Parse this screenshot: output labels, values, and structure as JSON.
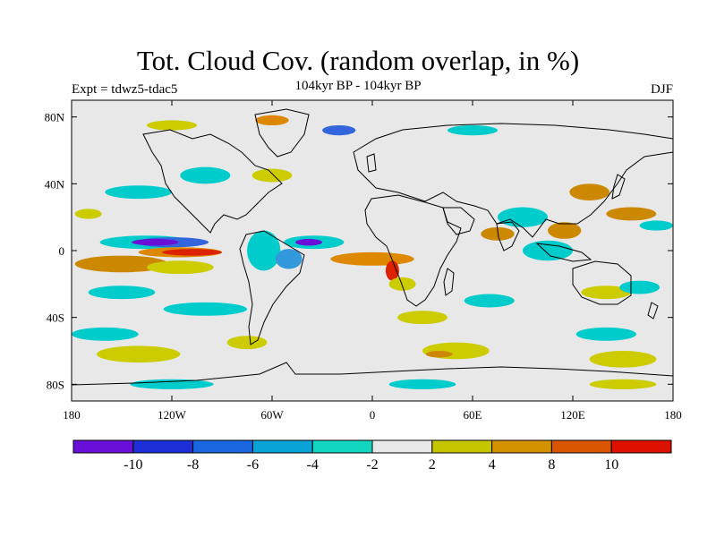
{
  "title": "Tot. Cloud Cov. (random overlap, in %)",
  "subtitle": "104kyr BP - 104kyr BP",
  "experiment_label": "Expt = tdwz5-tdac5",
  "season_label": "DJF",
  "map": {
    "lon_range": [
      -180,
      180
    ],
    "lat_range": [
      -90,
      90
    ],
    "background_color": "#e8e8e8",
    "coastline_color": "#000000",
    "x_tick_labels": [
      {
        "lon": -180,
        "label": "180"
      },
      {
        "lon": -120,
        "label": "120W"
      },
      {
        "lon": -60,
        "label": "60W"
      },
      {
        "lon": 0,
        "label": "0"
      },
      {
        "lon": 60,
        "label": "60E"
      },
      {
        "lon": 120,
        "label": "120E"
      },
      {
        "lon": 180,
        "label": "180"
      }
    ],
    "y_tick_labels": [
      {
        "lat": 80,
        "label": "80N"
      },
      {
        "lat": 40,
        "label": "40N"
      },
      {
        "lat": 0,
        "label": "0"
      },
      {
        "lat": -40,
        "label": "40S"
      },
      {
        "lat": -80,
        "label": "80S"
      }
    ],
    "anomaly_regions": [
      {
        "lon": -135,
        "lat": 5,
        "rx": 28,
        "ry": 4,
        "color": "#00cccc"
      },
      {
        "lon": -120,
        "lat": 5,
        "rx": 22,
        "ry": 3,
        "color": "#3366dd"
      },
      {
        "lon": -130,
        "lat": 5,
        "rx": 14,
        "ry": 2,
        "color": "#6a0fd8"
      },
      {
        "lon": -115,
        "lat": -1,
        "rx": 25,
        "ry": 3,
        "color": "#dd8800"
      },
      {
        "lon": -108,
        "lat": -1,
        "rx": 18,
        "ry": 2,
        "color": "#dd2200"
      },
      {
        "lon": -150,
        "lat": -8,
        "rx": 28,
        "ry": 5,
        "color": "#cc8800"
      },
      {
        "lon": -115,
        "lat": -10,
        "rx": 20,
        "ry": 4,
        "color": "#cccc00"
      },
      {
        "lon": -35,
        "lat": 5,
        "rx": 18,
        "ry": 4,
        "color": "#00cccc"
      },
      {
        "lon": -38,
        "lat": 5,
        "rx": 8,
        "ry": 2,
        "color": "#6a0fd8"
      },
      {
        "lon": -65,
        "lat": 0,
        "rx": 10,
        "ry": 12,
        "color": "#00cccc"
      },
      {
        "lon": -50,
        "lat": -5,
        "rx": 8,
        "ry": 6,
        "color": "#3399dd"
      },
      {
        "lon": 0,
        "lat": -5,
        "rx": 25,
        "ry": 4,
        "color": "#dd8800"
      },
      {
        "lon": 12,
        "lat": -12,
        "rx": 4,
        "ry": 6,
        "color": "#dd2200"
      },
      {
        "lon": 18,
        "lat": -20,
        "rx": 8,
        "ry": 4,
        "color": "#cccc00"
      },
      {
        "lon": -170,
        "lat": 22,
        "rx": 8,
        "ry": 3,
        "color": "#cccc00"
      },
      {
        "lon": -140,
        "lat": 35,
        "rx": 20,
        "ry": 4,
        "color": "#00cccc"
      },
      {
        "lon": -100,
        "lat": 45,
        "rx": 15,
        "ry": 5,
        "color": "#00cccc"
      },
      {
        "lon": -60,
        "lat": 45,
        "rx": 12,
        "ry": 4,
        "color": "#cccc00"
      },
      {
        "lon": -120,
        "lat": 75,
        "rx": 15,
        "ry": 3,
        "color": "#cccc00"
      },
      {
        "lon": -60,
        "lat": 78,
        "rx": 10,
        "ry": 3,
        "color": "#dd8800"
      },
      {
        "lon": -20,
        "lat": 72,
        "rx": 10,
        "ry": 3,
        "color": "#3366dd"
      },
      {
        "lon": 60,
        "lat": 72,
        "rx": 15,
        "ry": 3,
        "color": "#00cccc"
      },
      {
        "lon": 90,
        "lat": 20,
        "rx": 15,
        "ry": 6,
        "color": "#00cccc"
      },
      {
        "lon": 75,
        "lat": 10,
        "rx": 10,
        "ry": 4,
        "color": "#cc8800"
      },
      {
        "lon": 115,
        "lat": 12,
        "rx": 10,
        "ry": 5,
        "color": "#cc8800"
      },
      {
        "lon": 105,
        "lat": 0,
        "rx": 15,
        "ry": 6,
        "color": "#00cccc"
      },
      {
        "lon": 130,
        "lat": 35,
        "rx": 12,
        "ry": 5,
        "color": "#cc8800"
      },
      {
        "lon": 155,
        "lat": 22,
        "rx": 15,
        "ry": 4,
        "color": "#cc8800"
      },
      {
        "lon": 170,
        "lat": 15,
        "rx": 10,
        "ry": 3,
        "color": "#00cccc"
      },
      {
        "lon": 140,
        "lat": -25,
        "rx": 15,
        "ry": 4,
        "color": "#cccc00"
      },
      {
        "lon": 160,
        "lat": -22,
        "rx": 12,
        "ry": 4,
        "color": "#00cccc"
      },
      {
        "lon": -150,
        "lat": -25,
        "rx": 20,
        "ry": 4,
        "color": "#00cccc"
      },
      {
        "lon": -100,
        "lat": -35,
        "rx": 25,
        "ry": 4,
        "color": "#00cccc"
      },
      {
        "lon": 70,
        "lat": -30,
        "rx": 15,
        "ry": 4,
        "color": "#00cccc"
      },
      {
        "lon": -160,
        "lat": -50,
        "rx": 20,
        "ry": 4,
        "color": "#00cccc"
      },
      {
        "lon": 30,
        "lat": -40,
        "rx": 15,
        "ry": 4,
        "color": "#cccc00"
      },
      {
        "lon": 50,
        "lat": -60,
        "rx": 20,
        "ry": 5,
        "color": "#cccc00"
      },
      {
        "lon": 40,
        "lat": -62,
        "rx": 8,
        "ry": 2,
        "color": "#cc8800"
      },
      {
        "lon": -140,
        "lat": -62,
        "rx": 25,
        "ry": 5,
        "color": "#cccc00"
      },
      {
        "lon": -75,
        "lat": -55,
        "rx": 12,
        "ry": 4,
        "color": "#cccc00"
      },
      {
        "lon": 140,
        "lat": -50,
        "rx": 18,
        "ry": 4,
        "color": "#00cccc"
      },
      {
        "lon": 150,
        "lat": -65,
        "rx": 20,
        "ry": 5,
        "color": "#cccc00"
      },
      {
        "lon": -120,
        "lat": -80,
        "rx": 25,
        "ry": 3,
        "color": "#00cccc"
      },
      {
        "lon": 30,
        "lat": -80,
        "rx": 20,
        "ry": 3,
        "color": "#00cccc"
      },
      {
        "lon": 150,
        "lat": -80,
        "rx": 20,
        "ry": 3,
        "color": "#cccc00"
      }
    ]
  },
  "colorbar": {
    "colors": [
      "#6a0fd8",
      "#1e2fd8",
      "#1a66e0",
      "#0aa3d8",
      "#12d6c0",
      "#e8e8e8",
      "#c6c600",
      "#d49100",
      "#d95500",
      "#dd1100"
    ],
    "labels": [
      "-10",
      "-8",
      "-6",
      "-4",
      "-2",
      "2",
      "4",
      "8",
      "10"
    ]
  }
}
